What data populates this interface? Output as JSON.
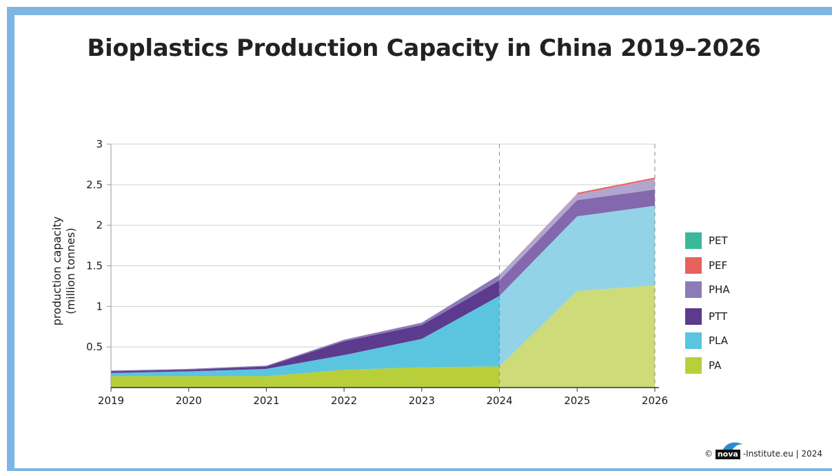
{
  "title": "Bioplastics Production Capacity in China 2019–2026",
  "footer": {
    "copyright": "©",
    "logo_text": "nova",
    "site": "-Institute.eu | 2024"
  },
  "chart_data": {
    "type": "area",
    "stacked": true,
    "x": [
      "2019",
      "2020",
      "2021",
      "2022",
      "2023",
      "2024",
      "2025",
      "2026"
    ],
    "ylabel": "production capacity\n(million tonnes)",
    "ylabel_lines": [
      "production capacity",
      "(million tonnes)"
    ],
    "ylim": [
      0,
      3
    ],
    "yticks": [
      0.5,
      1,
      1.5,
      2,
      2.5,
      3
    ],
    "ytick_labels": [
      "0.5",
      "1",
      "1.5",
      "2",
      "2.5",
      "3"
    ],
    "grid": true,
    "forecast_from": "2024",
    "forecast_lines_at": [
      "2024",
      "2026"
    ],
    "legend_position": "right",
    "series": [
      {
        "name": "PA",
        "color": "#b8cf3a",
        "forecast_color": "#cddb78",
        "values": [
          0.14,
          0.14,
          0.14,
          0.22,
          0.25,
          0.26,
          1.19,
          1.26
        ]
      },
      {
        "name": "PLA",
        "color": "#5bc4df",
        "forecast_color": "#93d3e7",
        "values": [
          0.04,
          0.06,
          0.09,
          0.18,
          0.35,
          0.87,
          0.92,
          0.98
        ]
      },
      {
        "name": "PTT",
        "color": "#5c3a8e",
        "forecast_color": "#8368ad",
        "values": [
          0.02,
          0.02,
          0.03,
          0.17,
          0.17,
          0.19,
          0.2,
          0.2
        ]
      },
      {
        "name": "PHA",
        "color": "#8c7bb8",
        "forecast_color": "#b1a6cf",
        "values": [
          0.01,
          0.01,
          0.01,
          0.02,
          0.03,
          0.07,
          0.07,
          0.13
        ]
      },
      {
        "name": "PEF",
        "color": "#e8625c",
        "forecast_color": "#ec8a86",
        "values": [
          0,
          0,
          0,
          0,
          0,
          0,
          0.01,
          0.01
        ]
      },
      {
        "name": "PET",
        "color": "#3bb89c",
        "forecast_color": "#7ccdb8",
        "values": [
          0,
          0,
          0,
          0,
          0,
          0,
          0,
          0
        ]
      }
    ],
    "legend_order": [
      "PET",
      "PEF",
      "PHA",
      "PTT",
      "PLA",
      "PA"
    ]
  }
}
